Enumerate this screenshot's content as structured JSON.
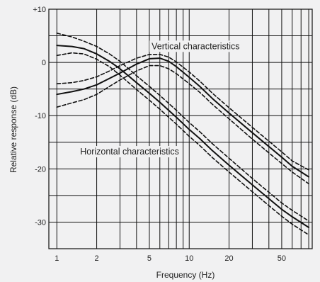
{
  "chart_data": {
    "type": "line",
    "xlabel": "Frequency (Hz)",
    "ylabel": "Relative response (dB)",
    "x_scale": "log",
    "xlim": [
      0.87,
      85
    ],
    "ylim": [
      -35,
      10
    ],
    "x_ticks": [
      {
        "value": 1,
        "label": "1"
      },
      {
        "value": 2,
        "label": "2"
      },
      {
        "value": 5,
        "label": "5"
      },
      {
        "value": 10,
        "label": "10"
      },
      {
        "value": 20,
        "label": "20"
      },
      {
        "value": 50,
        "label": "50"
      }
    ],
    "y_ticks": [
      {
        "value": 10,
        "label": "+10"
      },
      {
        "value": 0,
        "label": "0"
      },
      {
        "value": -10,
        "label": "-10"
      },
      {
        "value": -20,
        "label": "-20"
      },
      {
        "value": -30,
        "label": "-30"
      }
    ],
    "grid": true,
    "annotations": [
      {
        "text": "Vertical characteristics",
        "x": 5.2,
        "y": 2.5
      },
      {
        "text": "Horizontal characteristics",
        "x": 1.5,
        "y": -17.3
      }
    ],
    "series": [
      {
        "style": "solid",
        "x": [
          1,
          1.3,
          1.6,
          2,
          2.5,
          3,
          4,
          5,
          6,
          7,
          8,
          10,
          12,
          15,
          20,
          30,
          40,
          50,
          60,
          80
        ],
        "y": [
          -6,
          -5.5,
          -5,
          -4.2,
          -3,
          -2,
          -0.3,
          0.7,
          0.8,
          0.2,
          -0.8,
          -2.8,
          -4.5,
          -6.8,
          -9.5,
          -13.2,
          -15.8,
          -17.8,
          -19.5,
          -21.5
        ]
      },
      {
        "style": "dashed",
        "x": [
          1,
          1.3,
          1.6,
          2,
          2.5,
          3,
          4,
          5,
          6,
          7,
          8,
          10,
          12,
          15,
          20,
          30,
          40,
          50,
          60,
          80
        ],
        "y": [
          -4,
          -3.8,
          -3.4,
          -2.7,
          -1.6,
          -0.6,
          0.8,
          1.5,
          1.5,
          1,
          0.1,
          -1.8,
          -3.5,
          -5.8,
          -8.5,
          -12.2,
          -14.8,
          -16.8,
          -18.5,
          -20.2
        ]
      },
      {
        "style": "dashed",
        "x": [
          1,
          1.3,
          1.6,
          2,
          2.5,
          3,
          4,
          5,
          6,
          7,
          8,
          10,
          12,
          15,
          20,
          30,
          40,
          50,
          60,
          80
        ],
        "y": [
          -8.4,
          -7.6,
          -7,
          -6,
          -4.5,
          -3.3,
          -1.6,
          -0.6,
          -0.6,
          -1.2,
          -2.1,
          -4,
          -5.6,
          -7.9,
          -10.6,
          -14.4,
          -17,
          -19,
          -20.6,
          -22.8
        ]
      },
      {
        "style": "solid",
        "x": [
          1,
          1.3,
          1.6,
          2,
          2.5,
          3,
          4,
          5,
          6,
          7,
          8,
          10,
          12,
          15,
          20,
          30,
          40,
          50,
          60,
          80
        ],
        "y": [
          3.2,
          3,
          2.6,
          1.6,
          0.2,
          -1.2,
          -3.8,
          -5.8,
          -7.5,
          -9,
          -10.3,
          -12.6,
          -14.3,
          -16.6,
          -19.3,
          -23,
          -25.6,
          -27.6,
          -29,
          -31
        ]
      },
      {
        "style": "dashed",
        "x": [
          1,
          1.3,
          1.6,
          2,
          2.5,
          3,
          4,
          5,
          6,
          7,
          8,
          10,
          12,
          15,
          20,
          30,
          40,
          50,
          60,
          80
        ],
        "y": [
          5.5,
          4.8,
          4,
          3,
          1.6,
          0.2,
          -2.5,
          -4.5,
          -6.2,
          -7.7,
          -9,
          -11.3,
          -13,
          -15.3,
          -18,
          -21.8,
          -24.4,
          -26.4,
          -27.8,
          -29.8
        ]
      },
      {
        "style": "dashed",
        "x": [
          1,
          1.3,
          1.6,
          2,
          2.5,
          3,
          4,
          5,
          6,
          7,
          8,
          10,
          12,
          15,
          20,
          30,
          40,
          50,
          60,
          80
        ],
        "y": [
          1.3,
          1.8,
          1.6,
          0.6,
          -0.8,
          -2.4,
          -5.1,
          -7.1,
          -8.8,
          -10.3,
          -11.6,
          -13.9,
          -15.6,
          -17.9,
          -20.6,
          -24.3,
          -26.9,
          -28.9,
          -30.4,
          -32.4
        ]
      }
    ]
  }
}
